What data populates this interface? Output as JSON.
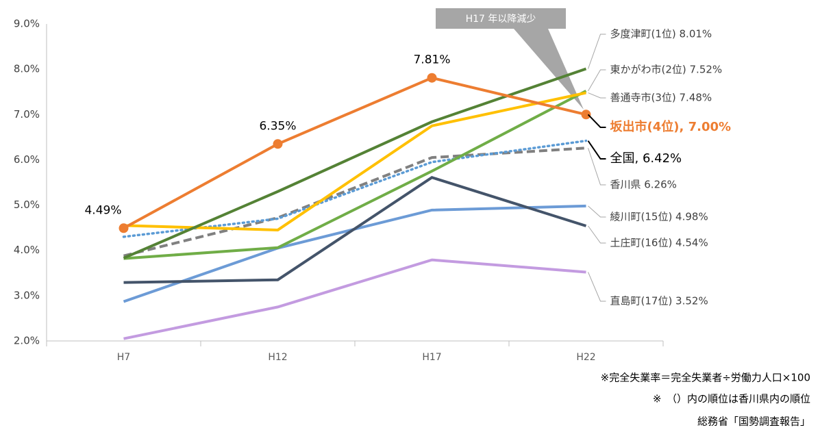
{
  "chart_data": {
    "type": "line",
    "categories": [
      "H7",
      "H12",
      "H17",
      "H22"
    ],
    "ylim": [
      2,
      9
    ],
    "yticks": [
      {
        "value": 2,
        "label": "2.0%"
      },
      {
        "value": 3,
        "label": "3.0%"
      },
      {
        "value": 4,
        "label": "4.0%"
      },
      {
        "value": 5,
        "label": "5.0%"
      },
      {
        "value": 6,
        "label": "6.0%"
      },
      {
        "value": 7,
        "label": "7.0%"
      },
      {
        "value": 8,
        "label": "8.0%"
      },
      {
        "value": 9,
        "label": "9.0%"
      }
    ],
    "grid": false,
    "series": [
      {
        "name": "直島町(17位) 3.52%",
        "color": "#C39BE0",
        "dash": "solid",
        "values": [
          2.05,
          2.75,
          3.79,
          3.52
        ]
      },
      {
        "name": "綾川町(15位) 4.98%",
        "color": "#6C9BD6",
        "dash": "solid",
        "values": [
          2.87,
          4.05,
          4.89,
          4.98
        ]
      },
      {
        "name": "土庄町(16位) 4.54%",
        "color": "#44546A",
        "dash": "solid",
        "values": [
          3.29,
          3.35,
          5.61,
          4.54
        ]
      },
      {
        "name": "香川県 6.26%",
        "color": "#808080",
        "dash": "dashed",
        "values": [
          3.88,
          4.72,
          6.05,
          6.26
        ]
      },
      {
        "name": "全国, 6.42%",
        "color": "#5B9BD5",
        "dash": "dotted",
        "values": [
          4.3,
          4.7,
          5.95,
          6.42
        ]
      },
      {
        "name": "東かがわ市(2位) 7.52%",
        "color": "#70AD47",
        "dash": "solid",
        "values": [
          3.82,
          4.06,
          5.75,
          7.52
        ]
      },
      {
        "name": "善通寺市(3位) 7.48%",
        "color": "#FFC000",
        "dash": "solid",
        "values": [
          4.55,
          4.45,
          6.75,
          7.48
        ]
      },
      {
        "name": "多度津町(1位)  8.01%",
        "color": "#548235",
        "dash": "solid",
        "values": [
          3.83,
          5.3,
          6.84,
          8.01
        ]
      },
      {
        "name": "坂出市(4位), 7.00%",
        "color": "#ED7D31",
        "dash": "solid",
        "markers": true,
        "values": [
          4.49,
          6.35,
          7.81,
          7.0
        ],
        "value_labels": [
          "4.49%",
          "6.35%",
          "7.81%",
          null
        ]
      }
    ],
    "annotation": "H17 年以降減少",
    "notes": [
      "※完全失業率＝完全失業者÷労働力人口×100",
      "※　（）内の順位は香川県内の順位",
      "総務省「国勢調査報告」"
    ]
  }
}
